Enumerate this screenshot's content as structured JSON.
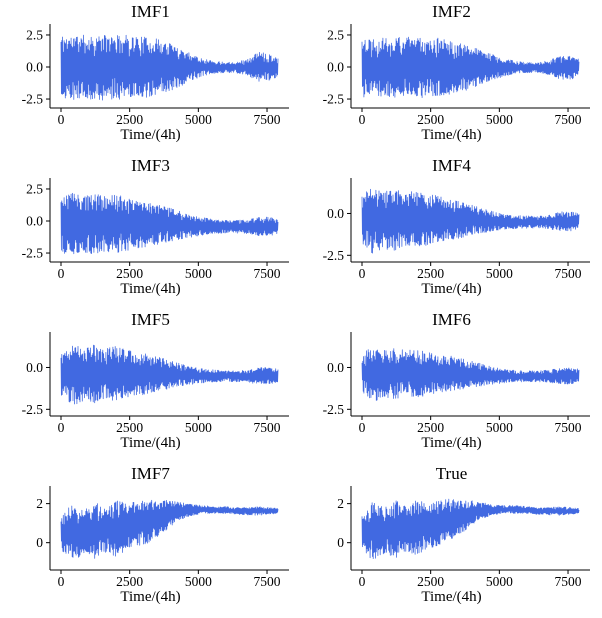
{
  "figure": {
    "background": "#ffffff",
    "rows": 4,
    "cols": 2,
    "line_color": "#4169e1",
    "axis_color": "#000000",
    "n_points": 560,
    "x_range": [
      0,
      7900
    ]
  },
  "chart_data": [
    {
      "type": "line",
      "title": "IMF1",
      "xlabel": "Time/(4h)",
      "x_ticks": [
        0,
        2500,
        5000,
        7500
      ],
      "x_tick_labels": [
        "0",
        "2500",
        "5000",
        "7500"
      ],
      "y_ticks": [
        2.5,
        0.0,
        -2.5
      ],
      "y_tick_labels": [
        "2.5",
        "0.0",
        "-2.5"
      ],
      "xlim": [
        -400,
        8300
      ],
      "ylim": [
        -3.2,
        3.2
      ],
      "color": "#4169e1",
      "seed": 11,
      "envelope": {
        "x": [
          0,
          400,
          800,
          1200,
          1600,
          2000,
          2400,
          2800,
          3200,
          3600,
          4000,
          4400,
          4800,
          5200,
          5600,
          6000,
          6400,
          6800,
          7200,
          7600,
          7900
        ],
        "upper": [
          2.5,
          2.45,
          2.5,
          2.45,
          2.5,
          2.45,
          2.5,
          2.4,
          2.3,
          2.15,
          1.85,
          1.45,
          1.0,
          0.65,
          0.45,
          0.4,
          0.42,
          0.6,
          1.2,
          1.0,
          0.75
        ],
        "lower": [
          -2.6,
          -2.55,
          -2.6,
          -2.55,
          -2.6,
          -2.55,
          -2.5,
          -2.45,
          -2.35,
          -2.15,
          -1.85,
          -1.45,
          -1.0,
          -0.7,
          -0.5,
          -0.45,
          -0.48,
          -0.65,
          -1.2,
          -1.05,
          -0.8
        ]
      }
    },
    {
      "type": "line",
      "title": "IMF2",
      "xlabel": "Time/(4h)",
      "x_ticks": [
        0,
        2500,
        5000,
        7500
      ],
      "x_tick_labels": [
        "0",
        "2500",
        "5000",
        "7500"
      ],
      "y_ticks": [
        2.5,
        0.0,
        -2.5
      ],
      "y_tick_labels": [
        "2.5",
        "0.0",
        "-2.5"
      ],
      "xlim": [
        -400,
        8300
      ],
      "ylim": [
        -3.2,
        3.2
      ],
      "color": "#4169e1",
      "seed": 22,
      "envelope": {
        "x": [
          0,
          400,
          800,
          1200,
          1600,
          2000,
          2400,
          2800,
          3200,
          3600,
          4000,
          4400,
          4800,
          5200,
          5600,
          6000,
          6400,
          6800,
          7200,
          7600,
          7900
        ],
        "upper": [
          2.35,
          2.3,
          2.35,
          2.3,
          2.35,
          2.3,
          2.35,
          2.25,
          2.1,
          1.9,
          1.6,
          1.25,
          0.95,
          0.65,
          0.45,
          0.38,
          0.38,
          0.5,
          0.85,
          0.9,
          0.6
        ],
        "lower": [
          -2.45,
          -2.4,
          -2.45,
          -2.4,
          -2.45,
          -2.4,
          -2.4,
          -2.3,
          -2.2,
          -2.0,
          -1.7,
          -1.3,
          -1.0,
          -0.7,
          -0.5,
          -0.45,
          -0.45,
          -0.6,
          -0.95,
          -1.0,
          -0.7
        ]
      }
    },
    {
      "type": "line",
      "title": "IMF3",
      "xlabel": "Time/(4h)",
      "x_ticks": [
        0,
        2500,
        5000,
        7500
      ],
      "x_tick_labels": [
        "0",
        "2500",
        "5000",
        "7500"
      ],
      "y_ticks": [
        2.5,
        0.0,
        -2.5
      ],
      "y_tick_labels": [
        "2.5",
        "0.0",
        "-2.5"
      ],
      "xlim": [
        -400,
        8300
      ],
      "ylim": [
        -3.2,
        3.2
      ],
      "color": "#4169e1",
      "seed": 33,
      "envelope": {
        "x": [
          0,
          400,
          800,
          1200,
          1600,
          2000,
          2400,
          2800,
          3200,
          3600,
          4000,
          4400,
          4800,
          5200,
          5600,
          6000,
          6400,
          6800,
          7200,
          7600,
          7900
        ],
        "upper": [
          1.9,
          2.3,
          2.0,
          2.2,
          1.9,
          2.1,
          1.8,
          1.7,
          1.5,
          1.25,
          1.0,
          0.7,
          0.45,
          0.25,
          0.1,
          0.05,
          0.05,
          0.1,
          0.3,
          0.3,
          0.15
        ],
        "lower": [
          -2.5,
          -2.7,
          -2.4,
          -2.6,
          -2.4,
          -2.5,
          -2.3,
          -2.2,
          -2.0,
          -1.8,
          -1.6,
          -1.4,
          -1.25,
          -1.1,
          -1.0,
          -0.95,
          -0.95,
          -1.0,
          -1.15,
          -1.15,
          -1.0
        ]
      }
    },
    {
      "type": "line",
      "title": "IMF4",
      "xlabel": "Time/(4h)",
      "x_ticks": [
        0,
        2500,
        5000,
        7500
      ],
      "x_tick_labels": [
        "0",
        "2500",
        "5000",
        "7500"
      ],
      "y_ticks": [
        0.0,
        -2.5
      ],
      "y_tick_labels": [
        "0.0",
        "-2.5"
      ],
      "xlim": [
        -400,
        8300
      ],
      "ylim": [
        -2.9,
        2.0
      ],
      "color": "#4169e1",
      "seed": 44,
      "envelope": {
        "x": [
          0,
          400,
          800,
          1200,
          1600,
          2000,
          2400,
          2800,
          3200,
          3600,
          4000,
          4400,
          4800,
          5200,
          5600,
          6000,
          6400,
          6800,
          7200,
          7600,
          7900
        ],
        "upper": [
          1.1,
          1.6,
          1.3,
          1.5,
          1.2,
          1.4,
          1.15,
          1.05,
          0.9,
          0.7,
          0.5,
          0.3,
          0.1,
          -0.05,
          -0.1,
          -0.15,
          -0.15,
          -0.1,
          0.1,
          0.1,
          0.0
        ],
        "lower": [
          -1.9,
          -2.4,
          -2.1,
          -2.3,
          -2.0,
          -2.1,
          -1.9,
          -1.8,
          -1.6,
          -1.45,
          -1.3,
          -1.15,
          -1.05,
          -0.95,
          -0.9,
          -0.88,
          -0.88,
          -0.92,
          -1.05,
          -1.05,
          -0.95
        ]
      }
    },
    {
      "type": "line",
      "title": "IMF5",
      "xlabel": "Time/(4h)",
      "x_ticks": [
        0,
        2500,
        5000,
        7500
      ],
      "x_tick_labels": [
        "0",
        "2500",
        "5000",
        "7500"
      ],
      "y_ticks": [
        0.0,
        -2.5
      ],
      "y_tick_labels": [
        "0.0",
        "-2.5"
      ],
      "xlim": [
        -400,
        8300
      ],
      "ylim": [
        -2.9,
        2.0
      ],
      "color": "#4169e1",
      "seed": 55,
      "envelope": {
        "x": [
          0,
          400,
          800,
          1200,
          1600,
          2000,
          2400,
          2800,
          3200,
          3600,
          4000,
          4400,
          4800,
          5200,
          5600,
          6000,
          6400,
          6800,
          7200,
          7600,
          7900
        ],
        "upper": [
          0.9,
          1.5,
          1.2,
          1.4,
          1.1,
          1.3,
          1.05,
          0.95,
          0.8,
          0.6,
          0.4,
          0.2,
          0.05,
          -0.1,
          -0.15,
          -0.2,
          -0.2,
          -0.15,
          0.0,
          0.0,
          -0.1
        ],
        "lower": [
          -1.7,
          -2.3,
          -2.0,
          -2.2,
          -1.9,
          -2.0,
          -1.8,
          -1.7,
          -1.55,
          -1.4,
          -1.25,
          -1.1,
          -1.0,
          -0.92,
          -0.88,
          -0.85,
          -0.85,
          -0.9,
          -1.0,
          -1.0,
          -0.9
        ]
      }
    },
    {
      "type": "line",
      "title": "IMF6",
      "xlabel": "Time/(4h)",
      "x_ticks": [
        0,
        2500,
        5000,
        7500
      ],
      "x_tick_labels": [
        "0",
        "2500",
        "5000",
        "7500"
      ],
      "y_ticks": [
        0.0,
        -2.5
      ],
      "y_tick_labels": [
        "0.0",
        "-2.5"
      ],
      "xlim": [
        -400,
        8300
      ],
      "ylim": [
        -2.9,
        2.0
      ],
      "color": "#4169e1",
      "seed": 66,
      "envelope": {
        "x": [
          0,
          400,
          800,
          1200,
          1600,
          2000,
          2400,
          2800,
          3200,
          3600,
          4000,
          4400,
          4800,
          5200,
          5600,
          6000,
          6400,
          6800,
          7200,
          7600,
          7900
        ],
        "upper": [
          0.8,
          1.3,
          1.05,
          1.2,
          1.0,
          1.1,
          0.9,
          0.8,
          0.7,
          0.55,
          0.4,
          0.2,
          0.05,
          -0.1,
          -0.15,
          -0.2,
          -0.2,
          -0.15,
          -0.05,
          0.0,
          -0.1
        ],
        "lower": [
          -1.5,
          -2.05,
          -1.8,
          -1.95,
          -1.7,
          -1.8,
          -1.65,
          -1.55,
          -1.45,
          -1.3,
          -1.2,
          -1.1,
          -1.0,
          -0.92,
          -0.88,
          -0.85,
          -0.85,
          -0.9,
          -0.98,
          -1.0,
          -0.9
        ]
      }
    },
    {
      "type": "line",
      "title": "IMF7",
      "xlabel": "Time/(4h)",
      "x_ticks": [
        0,
        2500,
        5000,
        7500
      ],
      "x_tick_labels": [
        "0",
        "2500",
        "5000",
        "7500"
      ],
      "y_ticks": [
        2,
        0
      ],
      "y_tick_labels": [
        "2",
        "0"
      ],
      "xlim": [
        -400,
        8300
      ],
      "ylim": [
        -1.4,
        2.8
      ],
      "color": "#4169e1",
      "seed": 77,
      "envelope": {
        "x": [
          0,
          400,
          800,
          1200,
          1600,
          2000,
          2400,
          2800,
          3200,
          3600,
          4000,
          4400,
          4800,
          5200,
          5600,
          6000,
          6400,
          6800,
          7200,
          7600,
          7900
        ],
        "upper": [
          1.3,
          2.0,
          1.7,
          2.1,
          1.8,
          2.2,
          2.0,
          2.15,
          2.2,
          2.2,
          2.15,
          2.05,
          1.95,
          1.9,
          1.85,
          1.85,
          1.8,
          1.8,
          1.85,
          1.8,
          1.75
        ],
        "lower": [
          -0.4,
          -1.05,
          -0.6,
          -0.95,
          -0.5,
          -0.75,
          -0.35,
          -0.2,
          0.0,
          0.35,
          0.85,
          1.2,
          1.4,
          1.5,
          1.5,
          1.5,
          1.45,
          1.42,
          1.4,
          1.45,
          1.5
        ]
      }
    },
    {
      "type": "line",
      "title": "True",
      "xlabel": "Time/(4h)",
      "x_ticks": [
        0,
        2500,
        5000,
        7500
      ],
      "x_tick_labels": [
        "0",
        "2500",
        "5000",
        "7500"
      ],
      "y_ticks": [
        2,
        0
      ],
      "y_tick_labels": [
        "2",
        "0"
      ],
      "xlim": [
        -400,
        8300
      ],
      "ylim": [
        -1.4,
        2.8
      ],
      "color": "#4169e1",
      "seed": 88,
      "envelope": {
        "x": [
          0,
          400,
          800,
          1200,
          1600,
          2000,
          2400,
          2800,
          3200,
          3600,
          4000,
          4400,
          4800,
          5200,
          5600,
          6000,
          6400,
          6800,
          7200,
          7600,
          7900
        ],
        "upper": [
          1.4,
          2.1,
          1.8,
          2.2,
          1.9,
          2.2,
          2.05,
          2.15,
          2.25,
          2.2,
          2.15,
          2.05,
          1.95,
          1.9,
          1.9,
          1.85,
          1.8,
          1.8,
          1.85,
          1.8,
          1.75
        ],
        "lower": [
          -0.3,
          -0.95,
          -0.55,
          -0.85,
          -0.45,
          -0.65,
          -0.3,
          -0.15,
          0.1,
          0.4,
          0.9,
          1.25,
          1.4,
          1.5,
          1.5,
          1.5,
          1.45,
          1.42,
          1.4,
          1.45,
          1.5
        ]
      }
    }
  ]
}
